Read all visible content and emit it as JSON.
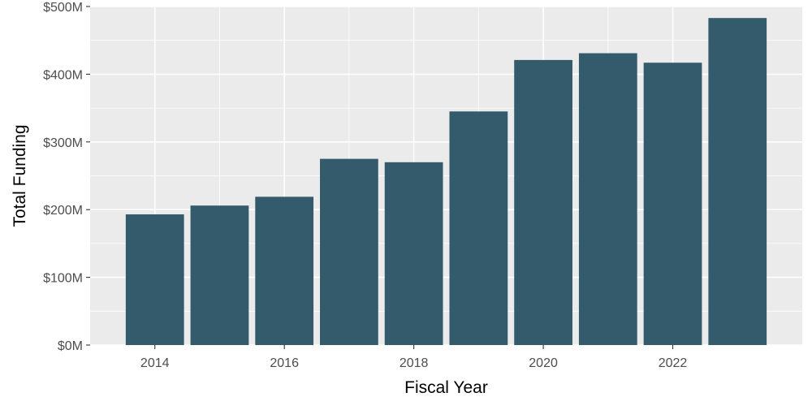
{
  "chart_data": {
    "type": "bar",
    "title": "",
    "xlabel": "Fiscal Year",
    "ylabel": "Total Funding",
    "categories": [
      2014,
      2015,
      2016,
      2017,
      2018,
      2019,
      2020,
      2021,
      2022,
      2023
    ],
    "values": [
      193,
      206,
      219,
      275,
      270,
      345,
      421,
      431,
      417,
      483
    ],
    "value_unit": "$M",
    "ylim": [
      0,
      500
    ],
    "xlim": [
      2013,
      2024
    ],
    "x_ticks": [
      2014,
      2016,
      2018,
      2020,
      2022
    ],
    "x_tick_labels": [
      "2014",
      "2016",
      "2018",
      "2020",
      "2022"
    ],
    "y_ticks": [
      0,
      100,
      200,
      300,
      400,
      500
    ],
    "y_tick_labels": [
      "$0M",
      "$100M",
      "$200M",
      "$300M",
      "$400M",
      "$500M"
    ],
    "grid": true,
    "legend": "none",
    "colors": {
      "bar": "#335b6c",
      "panel": "#ebebeb",
      "grid": "#ffffff",
      "tick_text": "#4d4d4d",
      "axis_title": "#000000",
      "tick_mark": "#333333"
    }
  }
}
